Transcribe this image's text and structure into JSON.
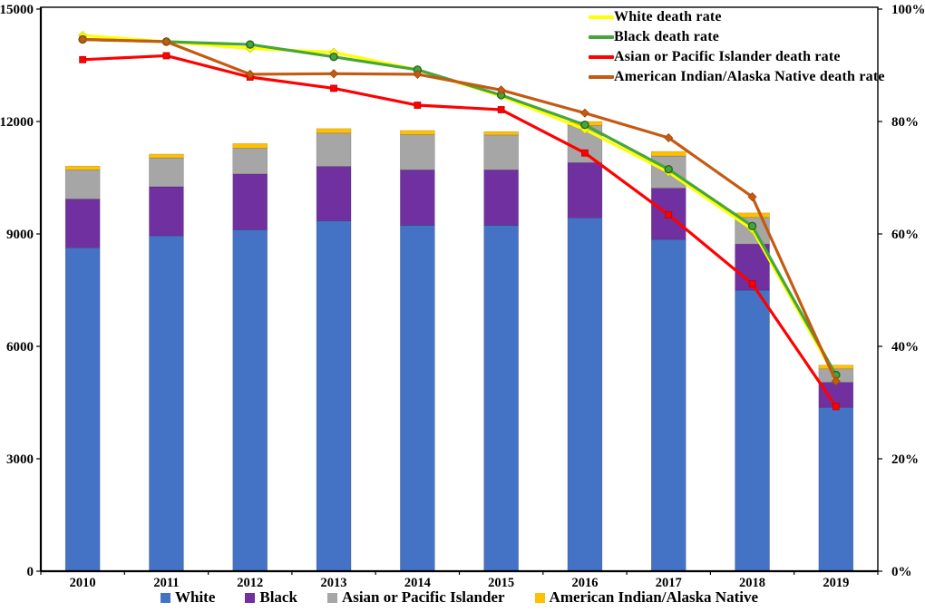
{
  "chart_data": {
    "type": "bar",
    "subtype": "stacked-bars-with-percent-lines",
    "categories": [
      "2010",
      "2011",
      "2012",
      "2013",
      "2014",
      "2015",
      "2016",
      "2017",
      "2018",
      "2019"
    ],
    "left_axis": {
      "tick_labels": [
        "0",
        "3000",
        "6000",
        "9000",
        "12000",
        "15000"
      ],
      "tick_values": [
        0,
        3000,
        6000,
        9000,
        12000,
        15000
      ],
      "range": [
        0,
        15000
      ]
    },
    "right_axis": {
      "tick_labels": [
        "0%",
        "20%",
        "40%",
        "60%",
        "80%",
        "100%"
      ],
      "tick_values": [
        0,
        20,
        40,
        60,
        80,
        100
      ],
      "range": [
        0,
        100
      ]
    },
    "grid": "off",
    "background": "#FFFFFF",
    "bar_series": [
      {
        "name": "White",
        "color": "#4472C4",
        "values": [
          8630,
          8950,
          9110,
          9350,
          9230,
          9230,
          9430,
          8850,
          7500,
          4370
        ]
      },
      {
        "name": "Black",
        "color": "#7030A0",
        "values": [
          1300,
          1310,
          1490,
          1450,
          1480,
          1480,
          1470,
          1370,
          1230,
          670
        ]
      },
      {
        "name": "Asian or Pacific Islander",
        "color": "#A6A6A6",
        "values": [
          780,
          770,
          690,
          890,
          940,
          930,
          990,
          860,
          710,
          360
        ]
      },
      {
        "name": "American Indian/Alaska Native",
        "color": "#FFC000",
        "values": [
          100,
          100,
          120,
          120,
          110,
          90,
          110,
          120,
          120,
          100
        ]
      }
    ],
    "line_series": [
      {
        "name": "White death rate",
        "color": "#FFFF00",
        "marker": "diamond",
        "values": [
          95.3,
          94.2,
          93.0,
          92.3,
          89.2,
          84.5,
          78.6,
          71.0,
          60.8,
          34.4
        ]
      },
      {
        "name": "Black death rate",
        "color": "#46A53C",
        "marker": "circle",
        "values": [
          94.6,
          94.2,
          93.7,
          91.5,
          89.2,
          84.7,
          79.4,
          71.5,
          61.4,
          34.9
        ]
      },
      {
        "name": "Asian or Pacific Islander death rate",
        "color": "#FF0000",
        "marker": "square",
        "values": [
          91.0,
          91.7,
          87.9,
          85.9,
          82.9,
          82.1,
          74.4,
          63.4,
          51.1,
          29.3
        ]
      },
      {
        "name": "American Indian/Alaska Native death rate",
        "color": "#C55A11",
        "marker": "diamond",
        "values": [
          94.6,
          94.2,
          88.4,
          88.5,
          88.4,
          85.6,
          81.5,
          77.1,
          66.6,
          33.8
        ]
      }
    ],
    "legend_position": {
      "lines": "top-right-inside",
      "bars": "bottom-center"
    }
  }
}
